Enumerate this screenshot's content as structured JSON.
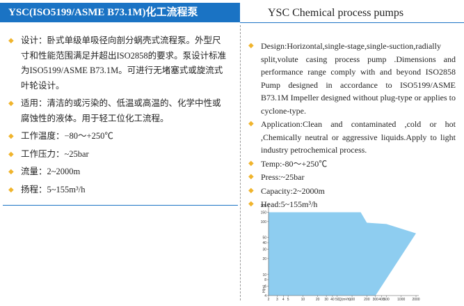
{
  "header": {
    "title_cn": "YSC(ISO5199/ASME B73.1M)化工流程泵",
    "title_en": "YSC Chemical process pumps"
  },
  "left": {
    "items": [
      "设计：卧式单级单吸径向剖分蜗壳式流程泵。外型尺寸和性能范围满足并超出ISO2858的要求。泵设计标准为ISO5199/ASME B73.1M。可进行无堵塞式或旋流式叶轮设计。",
      "适用：清洁的或污染的、低温或高温的、化学中性或腐蚀性的液体。用于轻工位化工流程。",
      "工作温度：−80〜+250℃",
      "工作压力：~25bar",
      "流量：2~2000m",
      "扬程：5~155m³/h"
    ]
  },
  "right": {
    "items": [
      "Design:Horizontal,single-stage,single-suction,radially split,volute casing process pump .Dimensions and performance range comply with and beyond ISO2858 Pump designed in accordance to ISO5199/ASME B73.1M Impeller designed without plug-type or applies to  cyclone-type.",
      "Application:Clean and contaminated ,cold or hot ,Chemically neutral or aggressive liquids.Apply  to light industry petrochemical process.",
      "Temp:-80〜+250℃",
      "Press:~25bar",
      "Capacity:2~2000m",
      "Head:5~155m³/h"
    ]
  },
  "chart_data": {
    "type": "area",
    "x_label": "Q(m³/h)",
    "y_label": "H(m)",
    "color": "#8ecdf0",
    "x": [
      2,
      150,
      200,
      500,
      2000,
      300,
      2
    ],
    "y": [
      150,
      150,
      95,
      90,
      60,
      4,
      4
    ],
    "xscale": "log",
    "yscale": "log",
    "xlim": [
      2,
      2000
    ],
    "ylim": [
      4,
      200
    ],
    "xticks": [
      2,
      3,
      4,
      5,
      10,
      20,
      30,
      40,
      50,
      100,
      200,
      300,
      400,
      500,
      1000,
      2000
    ],
    "yticks": [
      4,
      6,
      8,
      10,
      20,
      30,
      40,
      50,
      100,
      150,
      200
    ]
  }
}
